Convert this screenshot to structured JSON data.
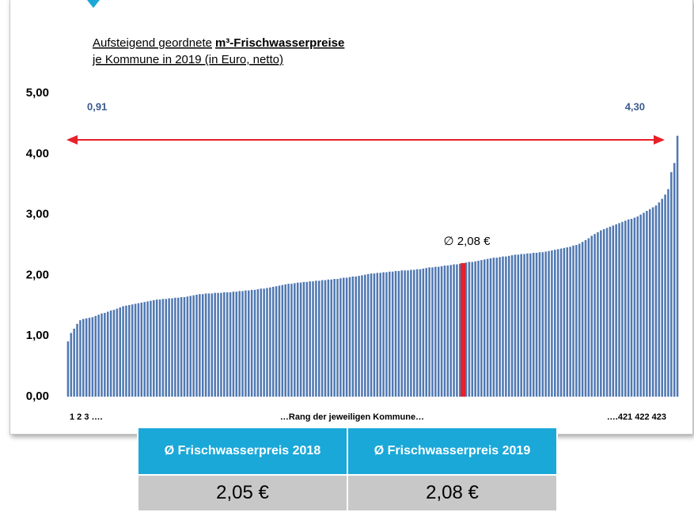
{
  "chart_data": {
    "type": "bar",
    "title_regular": "Aufsteigend geordnete",
    "title_bold": "m³-Frischwasserpreise",
    "subtitle": "je Kommune in 2019 (in Euro, netto)",
    "values": [
      0.91,
      1.05,
      1.12,
      1.2,
      1.26,
      1.28,
      1.29,
      1.3,
      1.31,
      1.33,
      1.35,
      1.37,
      1.38,
      1.4,
      1.42,
      1.43,
      1.45,
      1.47,
      1.49,
      1.5,
      1.51,
      1.52,
      1.53,
      1.54,
      1.55,
      1.56,
      1.57,
      1.58,
      1.59,
      1.6,
      1.6,
      1.61,
      1.61,
      1.62,
      1.62,
      1.63,
      1.63,
      1.64,
      1.64,
      1.65,
      1.66,
      1.67,
      1.68,
      1.69,
      1.69,
      1.7,
      1.7,
      1.7,
      1.71,
      1.71,
      1.71,
      1.72,
      1.72,
      1.72,
      1.73,
      1.73,
      1.74,
      1.74,
      1.75,
      1.75,
      1.76,
      1.76,
      1.77,
      1.78,
      1.78,
      1.79,
      1.8,
      1.81,
      1.82,
      1.83,
      1.84,
      1.85,
      1.86,
      1.86,
      1.87,
      1.88,
      1.88,
      1.89,
      1.89,
      1.9,
      1.9,
      1.91,
      1.91,
      1.92,
      1.92,
      1.93,
      1.93,
      1.94,
      1.94,
      1.95,
      1.96,
      1.96,
      1.97,
      1.98,
      1.98,
      1.99,
      2.0,
      2.01,
      2.02,
      2.03,
      2.03,
      2.04,
      2.04,
      2.05,
      2.05,
      2.06,
      2.06,
      2.07,
      2.07,
      2.08,
      2.08,
      2.08,
      2.09,
      2.09,
      2.1,
      2.1,
      2.11,
      2.12,
      2.13,
      2.13,
      2.14,
      2.14,
      2.15,
      2.16,
      2.16,
      2.17,
      2.18,
      2.18,
      2.19,
      2.2,
      2.21,
      2.22,
      2.22,
      2.23,
      2.24,
      2.25,
      2.26,
      2.27,
      2.28,
      2.29,
      2.29,
      2.3,
      2.31,
      2.31,
      2.32,
      2.33,
      2.34,
      2.34,
      2.35,
      2.35,
      2.36,
      2.36,
      2.37,
      2.37,
      2.38,
      2.38,
      2.39,
      2.4,
      2.41,
      2.42,
      2.43,
      2.44,
      2.45,
      2.46,
      2.47,
      2.49,
      2.5,
      2.52,
      2.55,
      2.58,
      2.61,
      2.65,
      2.68,
      2.71,
      2.74,
      2.76,
      2.78,
      2.8,
      2.82,
      2.84,
      2.86,
      2.88,
      2.9,
      2.92,
      2.93,
      2.95,
      2.97,
      3.0,
      3.03,
      3.06,
      3.09,
      3.12,
      3.15,
      3.2,
      3.26,
      3.33,
      3.42,
      3.7,
      3.85,
      4.3
    ],
    "color": "#5078b2",
    "highlight_index": 129,
    "highlight_color": "#e8202a",
    "ylim": [
      0,
      5
    ],
    "yticks": [
      {
        "value": 0,
        "label": "0,00"
      },
      {
        "value": 1,
        "label": "1,00"
      },
      {
        "value": 2,
        "label": "2,00"
      },
      {
        "value": 3,
        "label": "3,00"
      },
      {
        "value": 4,
        "label": "4,00"
      },
      {
        "value": 5,
        "label": "5,00"
      }
    ],
    "min_label": "0,91",
    "max_label": "4,30",
    "mean_label": "∅ 2,08 €",
    "x_start_label": "1 2 3 ….",
    "x_axis_label": "…Rang der jeweiligen Kommune…",
    "x_end_label": "….421 422 423"
  },
  "table": {
    "headers": [
      "Ø Frischwasserpreis 2018",
      "Ø Frischwasserpreis 2019"
    ],
    "values": [
      "2,05 €",
      "2,08 €"
    ]
  }
}
